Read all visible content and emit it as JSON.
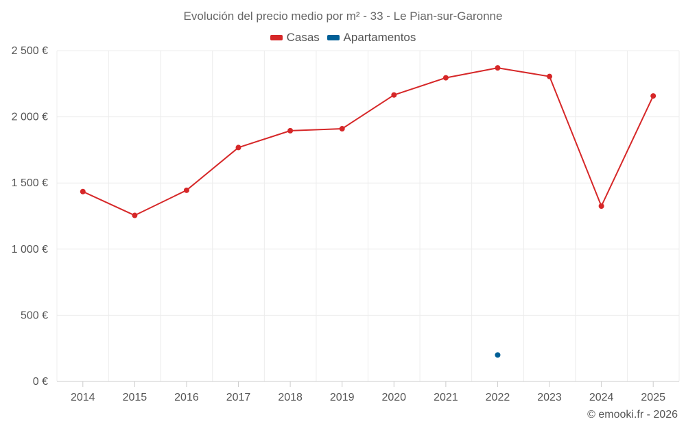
{
  "chart_data": {
    "type": "line",
    "title": "Evolución del precio medio por m² - 33 - Le Pian-sur-Garonne",
    "categories": [
      "2014",
      "2015",
      "2016",
      "2017",
      "2018",
      "2019",
      "2020",
      "2021",
      "2022",
      "2023",
      "2024",
      "2025"
    ],
    "series": [
      {
        "name": "Casas",
        "color": "#d62728",
        "values": [
          1435,
          1255,
          1445,
          1768,
          1895,
          1910,
          2165,
          2295,
          2370,
          2305,
          1325,
          2158
        ]
      },
      {
        "name": "Apartamentos",
        "color": "#005f96",
        "values": [
          null,
          null,
          null,
          null,
          null,
          null,
          null,
          null,
          200,
          null,
          null,
          null
        ]
      }
    ],
    "y_ticks": [
      0,
      500,
      1000,
      1500,
      2000,
      2500
    ],
    "y_tick_labels": [
      "0 €",
      "500 €",
      "1 000 €",
      "1 500 €",
      "2 000 €",
      "2 500 €"
    ],
    "ylim": [
      0,
      2500
    ],
    "xlabel": "",
    "ylabel": "",
    "grid": true,
    "legend_position": "top-center"
  },
  "credit": "© emooki.fr - 2026"
}
